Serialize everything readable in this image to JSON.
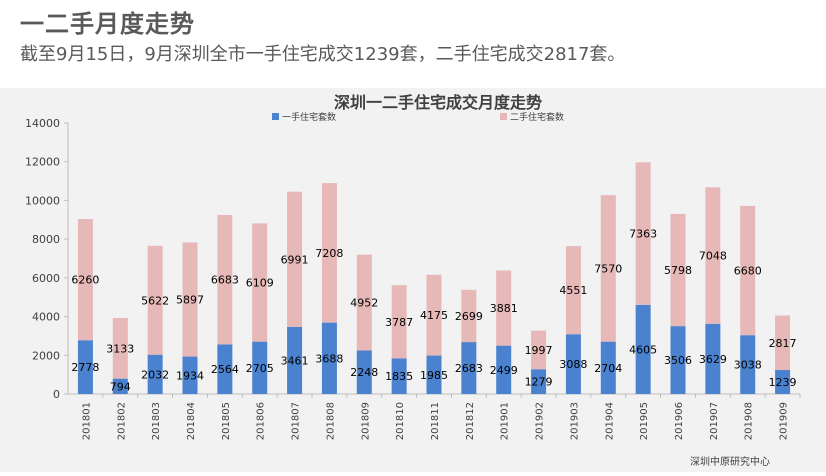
{
  "header": {
    "title": "一二手月度走势",
    "subtitle": "截至9月15日，9月深圳全市一手住宅成交1239套，二手住宅成交2817套。"
  },
  "colors": {
    "series_first": "#4a82d0",
    "series_second": "#e6b9b8",
    "axis": "#bfbfbf",
    "text": "#404040",
    "chart_bg": "#f2f2f2"
  },
  "chart_data": {
    "type": "bar",
    "stacked": true,
    "title": "深圳一二手住宅成交月度走势",
    "xlabel": "",
    "ylabel": "",
    "ylim": [
      0,
      14000
    ],
    "yticks": [
      0,
      2000,
      4000,
      6000,
      8000,
      10000,
      12000,
      14000
    ],
    "categories": [
      "201801",
      "201802",
      "201803",
      "201804",
      "201805",
      "201806",
      "201807",
      "201808",
      "201809",
      "201810",
      "201811",
      "201812",
      "201901",
      "201902",
      "201903",
      "201904",
      "201905",
      "201906",
      "201907",
      "201908",
      "201909"
    ],
    "series": [
      {
        "name": "一手住宅套数",
        "values": [
          2778,
          794,
          2032,
          1934,
          2564,
          2705,
          3461,
          3688,
          2248,
          1835,
          1985,
          2683,
          2499,
          1279,
          3088,
          2704,
          4605,
          3506,
          3629,
          3038,
          1239
        ]
      },
      {
        "name": "二手住宅套数",
        "values": [
          6260,
          3133,
          5622,
          5897,
          6683,
          6109,
          6991,
          7208,
          4952,
          3787,
          4175,
          2699,
          3881,
          1997,
          4551,
          7570,
          7363,
          5798,
          7048,
          6680,
          2817
        ]
      }
    ],
    "legend_position": "top",
    "source": "深圳中原研究中心"
  }
}
